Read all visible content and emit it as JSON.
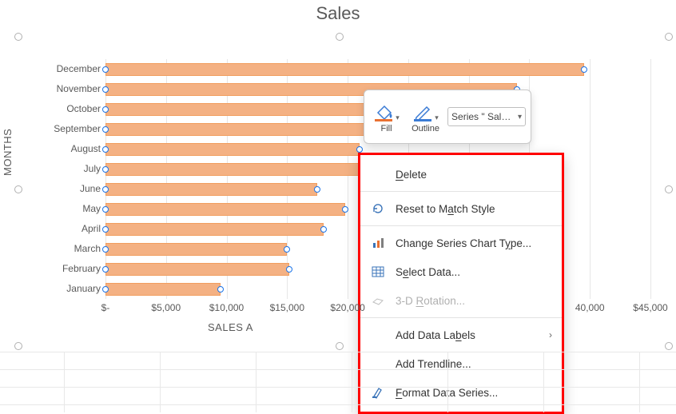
{
  "chart": {
    "title": "Sales",
    "y_axis_label": "MONTHS",
    "x_axis_label": "SALES A",
    "bar_color": "#f4b183",
    "bar_border_color": "#f19e5f",
    "grid_color": "#e6e6e6",
    "handle_border": "#1a73e8",
    "x_min": 0,
    "x_max": 45000,
    "x_ticks": [
      {
        "v": 0,
        "label": "$-"
      },
      {
        "v": 5000,
        "label": "$5,000"
      },
      {
        "v": 10000,
        "label": "$10,000"
      },
      {
        "v": 15000,
        "label": "$15,000"
      },
      {
        "v": 20000,
        "label": "$20,000"
      },
      {
        "v": 40000,
        "label": "40,000"
      },
      {
        "v": 45000,
        "label": "$45,000"
      }
    ],
    "categories_top_to_bottom": [
      {
        "label": "December",
        "value": 39500
      },
      {
        "label": "November",
        "value": 34000
      },
      {
        "label": "October",
        "value": 32000
      },
      {
        "label": "September",
        "value": 30000
      },
      {
        "label": "August",
        "value": 21000
      },
      {
        "label": "July",
        "value": 24500
      },
      {
        "label": "June",
        "value": 17500
      },
      {
        "label": "May",
        "value": 19800
      },
      {
        "label": "April",
        "value": 18000
      },
      {
        "label": "March",
        "value": 15000
      },
      {
        "label": "February",
        "value": 15200
      },
      {
        "label": "January",
        "value": 9500
      }
    ]
  },
  "mini_toolbar": {
    "fill_label": "Fill",
    "outline_label": "Outline",
    "series_selected": "Series \" Sales \""
  },
  "context_menu": {
    "items": [
      {
        "type": "item",
        "label_pre": "",
        "u": "D",
        "label_post": "elete",
        "icon": "",
        "enabled": true
      },
      {
        "type": "sep"
      },
      {
        "type": "item",
        "label_pre": "Reset to M",
        "u": "a",
        "label_post": "tch Style",
        "icon": "reset",
        "enabled": true
      },
      {
        "type": "sep"
      },
      {
        "type": "item",
        "label_pre": "Change Series Chart T",
        "u": "y",
        "label_post": "pe...",
        "icon": "chart-type",
        "enabled": true
      },
      {
        "type": "item",
        "label_pre": "S",
        "u": "e",
        "label_post": "lect Data...",
        "icon": "select-data",
        "enabled": true
      },
      {
        "type": "item",
        "label_pre": "3-D ",
        "u": "R",
        "label_post": "otation...",
        "icon": "rotation",
        "enabled": false
      },
      {
        "type": "sep"
      },
      {
        "type": "item",
        "label_pre": "Add Data La",
        "u": "b",
        "label_post": "els",
        "icon": "",
        "enabled": true,
        "submenu": true
      },
      {
        "type": "item",
        "label_pre": "Add T",
        "u": "r",
        "label_post": "endline...",
        "icon": "",
        "enabled": true
      },
      {
        "type": "item",
        "label_pre": "",
        "u": "F",
        "label_post": "ormat Data Series...",
        "icon": "format",
        "enabled": true
      }
    ]
  }
}
